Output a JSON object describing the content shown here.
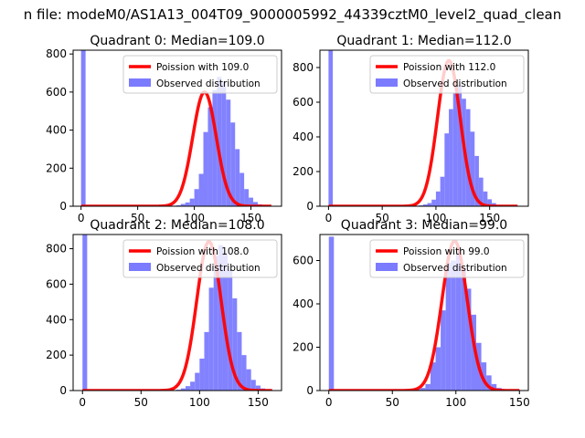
{
  "figure": {
    "title": "n file: modeM0/AS1A13_004T09_9000005992_44339cztM0_level2_quad_clean"
  },
  "colors": {
    "histogram": "#7b7bff",
    "fit": "#ff0000"
  },
  "chart_data": [
    {
      "type": "bar",
      "title": "Quadrant 0: Median=109.0",
      "xlim": [
        -7,
        177
      ],
      "ylim": [
        0,
        820
      ],
      "xticks": [
        0,
        50,
        100,
        150
      ],
      "yticks": [
        0,
        200,
        400,
        600,
        800
      ],
      "grid": false,
      "legend_position": "top-right",
      "bins": {
        "start": 0,
        "width": 4,
        "values": [
          820,
          0,
          0,
          0,
          0,
          0,
          0,
          0,
          0,
          0,
          0,
          0,
          0,
          0,
          0,
          0,
          0,
          0,
          0,
          2,
          3,
          5,
          12,
          20,
          40,
          90,
          170,
          390,
          520,
          610,
          680,
          650,
          560,
          440,
          300,
          175,
          90,
          45,
          22,
          10,
          5,
          2
        ]
      },
      "series": [
        {
          "name": "Poission with 109.0",
          "kind": "line",
          "mean": 109.0,
          "peak": 600,
          "sigma": 10.4,
          "x_range": [
            0,
            168
          ]
        },
        {
          "name": "Observed distribution",
          "kind": "histogram"
        }
      ]
    },
    {
      "type": "bar",
      "title": "Quadrant 1: Median=112.0",
      "xlim": [
        -8,
        186
      ],
      "ylim": [
        0,
        900
      ],
      "xticks": [
        0,
        50,
        100,
        150
      ],
      "yticks": [
        0,
        200,
        400,
        600,
        800
      ],
      "grid": false,
      "legend_position": "top-right",
      "bins": {
        "start": 0,
        "width": 4,
        "values": [
          900,
          0,
          0,
          0,
          0,
          0,
          0,
          0,
          0,
          0,
          0,
          0,
          0,
          0,
          0,
          0,
          0,
          0,
          0,
          2,
          3,
          5,
          10,
          18,
          38,
          85,
          170,
          420,
          560,
          650,
          700,
          620,
          560,
          430,
          290,
          165,
          85,
          40,
          18,
          8,
          4,
          2,
          1,
          1
        ]
      },
      "series": [
        {
          "name": "Poission with 112.0",
          "kind": "line",
          "mean": 112.0,
          "peak": 840,
          "sigma": 10.6,
          "x_range": [
            0,
            176
          ]
        },
        {
          "name": "Observed distribution",
          "kind": "histogram"
        }
      ]
    },
    {
      "type": "bar",
      "title": "Quadrant 2: Median=108.0",
      "xlim": [
        -8,
        170
      ],
      "ylim": [
        0,
        880
      ],
      "xticks": [
        0,
        50,
        100,
        150
      ],
      "yticks": [
        0,
        200,
        400,
        600,
        800
      ],
      "grid": false,
      "legend_position": "top-right",
      "bins": {
        "start": 0,
        "width": 4,
        "values": [
          880,
          0,
          0,
          0,
          0,
          0,
          0,
          0,
          0,
          0,
          0,
          0,
          0,
          0,
          0,
          0,
          0,
          0,
          0,
          2,
          5,
          12,
          25,
          50,
          100,
          180,
          330,
          580,
          760,
          820,
          780,
          680,
          520,
          330,
          200,
          120,
          60,
          28,
          12,
          5
        ]
      },
      "series": [
        {
          "name": "Poission with 108.0",
          "kind": "line",
          "mean": 108.0,
          "peak": 840,
          "sigma": 10.4,
          "x_range": [
            0,
            162
          ]
        },
        {
          "name": "Observed distribution",
          "kind": "histogram"
        }
      ]
    },
    {
      "type": "bar",
      "title": "Quadrant 3: Median=99.0",
      "xlim": [
        -7,
        157
      ],
      "ylim": [
        0,
        720
      ],
      "xticks": [
        0,
        50,
        100,
        150
      ],
      "yticks": [
        0,
        200,
        400,
        600
      ],
      "grid": false,
      "legend_position": "top-right",
      "bins": {
        "start": 0,
        "width": 4,
        "values": [
          710,
          0,
          0,
          0,
          0,
          0,
          0,
          0,
          0,
          0,
          0,
          0,
          0,
          0,
          0,
          0,
          3,
          6,
          12,
          30,
          130,
          200,
          370,
          590,
          600,
          640,
          570,
          470,
          350,
          220,
          130,
          70,
          30,
          12,
          5,
          2,
          1,
          1
        ]
      },
      "series": [
        {
          "name": "Poission with 99.0",
          "kind": "line",
          "mean": 99.0,
          "peak": 690,
          "sigma": 9.95,
          "x_range": [
            0,
            150
          ]
        },
        {
          "name": "Observed distribution",
          "kind": "histogram"
        }
      ]
    }
  ]
}
